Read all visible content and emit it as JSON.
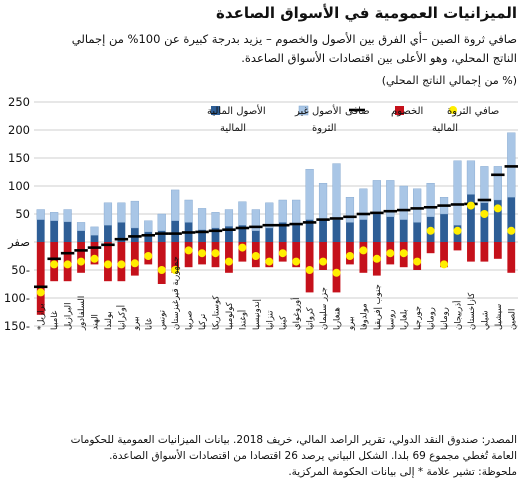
{
  "title": "الميزانيات العمومية في الأسواق الصاعدة",
  "subtitle_lines": [
    "صافي ثروة الصين –أي الفرق بين الأصول والخصوم – يزيد بدرجة كبيرة عن 100% من إجمالي",
    "الناتج المحلي، وهو الأعلى بين اقتصادات الأسواق الصاعدة."
  ],
  "unit_label": "(% من إجمالي الناتج المحلي)",
  "legend": {
    "financial_assets": "الأصول المالية",
    "nonfinancial_assets": [
      "الأصول غير",
      "المالية"
    ],
    "liabilities": "الخصوم",
    "net": "صافى",
    "financial_net_worth": [
      "صافي الثروة",
      "المالية"
    ],
    "net_worth": "الثروة"
  },
  "notes": [
    "المصدر: صندوق النقد الدولي، تقرير الراصد المالي، خريف 2018. بيانات الميزانيات العمومية للحكومات",
    "العامة تُغطي مجموع 69 بلدا. الشكل البياني يرصد 26 اقتصادا من اقتصادات الأسواق الصاعدة.",
    "ملحوظة: تشير علامة * إلى بيانات الحكومة المركزية."
  ],
  "colors": {
    "financial_assets": "#2e5e96",
    "nonfinancial_assets": "#a9c6e6",
    "liabilities": "#c5111b",
    "net_worth": "#000000",
    "financial_net_worth": "#ffee00",
    "grid": "#bfbfbf"
  },
  "chart_data": {
    "type": "bar",
    "ylim": [
      -150,
      250
    ],
    "yticks": [
      -150,
      -100,
      -50,
      0,
      50,
      100,
      150,
      200,
      250
    ],
    "ytick_labels": [
      "150-",
      "100-",
      "50-",
      "صفر",
      "50",
      "100",
      "150",
      "200",
      "250"
    ],
    "categories": [
      "برازيل*",
      "غامبيا",
      "البرازيل",
      "السلفادور",
      "الهند",
      "بولندا",
      "أوكرانيا",
      "بيرو",
      "غانا",
      "تونس",
      "جمهورية قيرغيزستان",
      "صربيا",
      "تركيا",
      "كوستاريكا",
      "كولومبيا",
      "أوغندا",
      "إندونيسيا",
      "تنزانيا",
      "كينيا",
      "أوروغواي",
      "كرواتيا",
      "جزر سليمان",
      "هنغاريا",
      "بيرو",
      "مولدوفا",
      "جنوب إفريقيا",
      "روسيا",
      "بلغاريا",
      "جورجيا",
      "رومانيا",
      "رومانيا",
      "أذربيجان",
      "كازاخستان",
      "شيلي",
      "سيشيل",
      "الصين"
    ],
    "series": [
      {
        "name": "الأصول المالية",
        "values": [
          40,
          38,
          36,
          20,
          12,
          30,
          35,
          25,
          18,
          20,
          38,
          35,
          22,
          25,
          28,
          30,
          20,
          25,
          35,
          30,
          40,
          40,
          40,
          35,
          40,
          50,
          45,
          40,
          35,
          45,
          50,
          30,
          85,
          70,
          75,
          80
        ]
      },
      {
        "name": "الأصول غير المالية",
        "values": [
          18,
          15,
          22,
          15,
          15,
          40,
          35,
          48,
          20,
          30,
          55,
          40,
          38,
          28,
          30,
          42,
          38,
          45,
          40,
          45,
          90,
          65,
          100,
          45,
          55,
          60,
          65,
          60,
          60,
          60,
          30,
          115,
          60,
          65,
          60,
          115
        ]
      },
      {
        "name": "الخصوم",
        "values": [
          -130,
          -70,
          -70,
          -55,
          -40,
          -70,
          -70,
          -60,
          -40,
          -75,
          -55,
          -45,
          -40,
          -45,
          -55,
          -35,
          -45,
          -45,
          -35,
          -45,
          -90,
          -50,
          -90,
          -40,
          -55,
          -60,
          -40,
          -45,
          -50,
          -20,
          -45,
          -15,
          -35,
          -35,
          -30,
          -55
        ]
      },
      {
        "name": "صافى الثروة",
        "values": [
          -80,
          -30,
          -20,
          -15,
          -10,
          -5,
          5,
          10,
          12,
          15,
          15,
          17,
          18,
          20,
          22,
          25,
          27,
          30,
          30,
          32,
          35,
          40,
          42,
          45,
          50,
          52,
          55,
          57,
          60,
          62,
          65,
          67,
          68,
          75,
          120,
          135
        ]
      },
      {
        "name": "صافي الثروة المالية",
        "values": [
          -90,
          -40,
          -40,
          -35,
          -30,
          -40,
          -40,
          -38,
          -25,
          -50,
          -50,
          -15,
          -20,
          -20,
          -35,
          -10,
          -25,
          -35,
          -20,
          -35,
          -50,
          -35,
          -55,
          -25,
          -15,
          -30,
          -20,
          -20,
          -35,
          20,
          -40,
          20,
          65,
          50,
          60,
          20
        ]
      }
    ]
  }
}
